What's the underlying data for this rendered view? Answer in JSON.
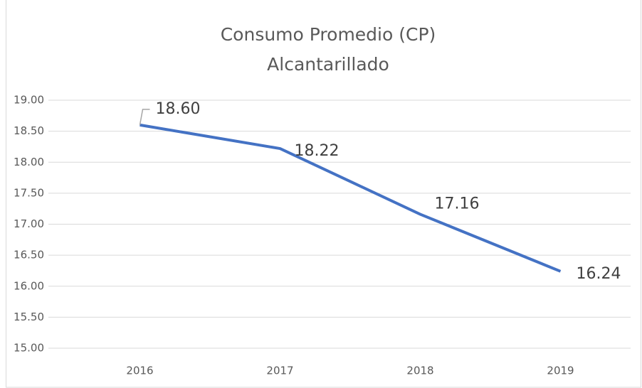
{
  "chart_data": {
    "type": "line",
    "title": [
      "Consumo Promedio (CP)",
      "Alcantarillado"
    ],
    "categories": [
      "2016",
      "2017",
      "2018",
      "2019"
    ],
    "series": [
      {
        "name": "CP",
        "color": "#4472c4",
        "values": [
          18.6,
          18.22,
          17.16,
          16.24
        ],
        "value_labels": [
          "18.60",
          "18.22",
          "17.16",
          "16.24"
        ]
      }
    ],
    "ylim": [
      15,
      19
    ],
    "yticks": [
      {
        "value": 15,
        "label": "15.00"
      },
      {
        "value": 15.5,
        "label": "15.50"
      },
      {
        "value": 16,
        "label": "16.00"
      },
      {
        "value": 16.5,
        "label": "16.50"
      },
      {
        "value": 17,
        "label": "17.00"
      },
      {
        "value": 17.5,
        "label": "17.50"
      },
      {
        "value": 18,
        "label": "18.00"
      },
      {
        "value": 18.5,
        "label": "18.50"
      },
      {
        "value": 19,
        "label": "19.00"
      }
    ],
    "grid": true
  }
}
